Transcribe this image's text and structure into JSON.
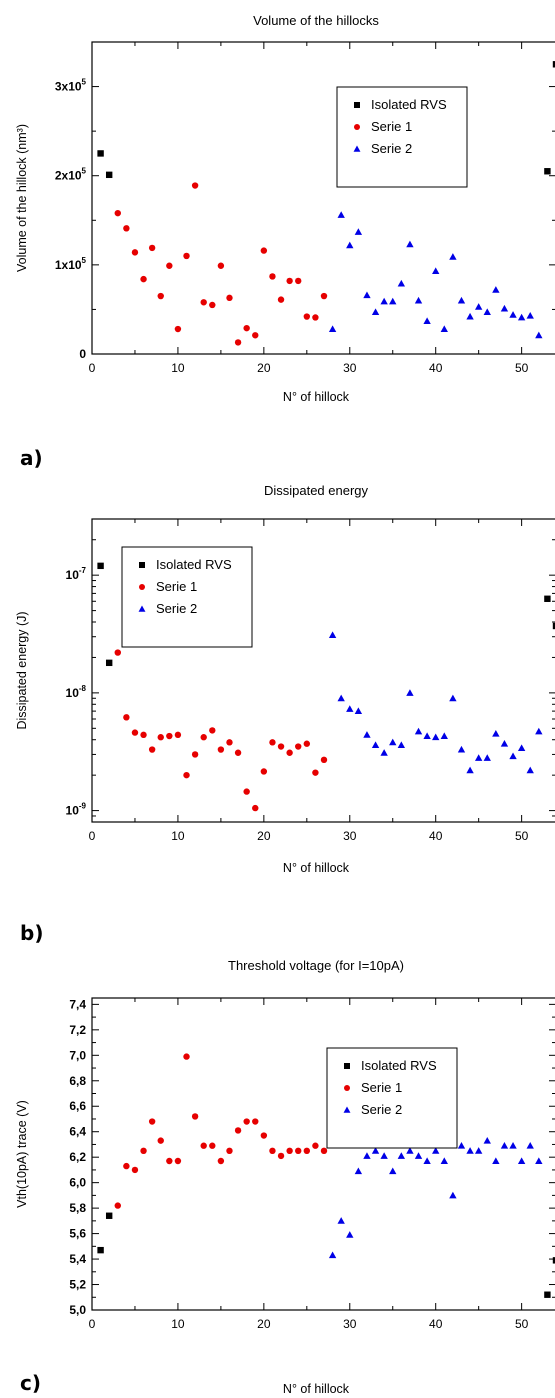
{
  "colors": {
    "isolated": "#000000",
    "serie1": "#e60000",
    "serie2": "#0000e6"
  },
  "chart_data": [
    {
      "panel_label": "a)",
      "type": "scatter",
      "title": "Volume of the hillocks",
      "xlabel": "N° of hillock",
      "ylabel": "Volume of the hillock (nm³)",
      "xlim": [
        0,
        54
      ],
      "ylim": [
        0,
        350000
      ],
      "yscale": "linear",
      "x_ticks": [
        0,
        10,
        20,
        30,
        40,
        50
      ],
      "y_ticks": [
        {
          "value": 0,
          "base": "0",
          "exp": ""
        },
        {
          "value": 100000,
          "base": "1x10",
          "exp": "5"
        },
        {
          "value": 200000,
          "base": "2x10",
          "exp": "5"
        },
        {
          "value": 300000,
          "base": "3x10",
          "exp": "5"
        }
      ],
      "legend_position": "top-right",
      "legend_entries": [
        "Isolated RVS",
        "Serie 1",
        "Serie 2"
      ],
      "series": [
        {
          "name": "Isolated RVS",
          "marker": "square",
          "points": [
            [
              1,
              225000
            ],
            [
              2,
              201000
            ],
            [
              53,
              205000
            ],
            [
              54,
              325000
            ]
          ]
        },
        {
          "name": "Serie 1",
          "marker": "circle",
          "points": [
            [
              3,
              158000
            ],
            [
              4,
              141000
            ],
            [
              5,
              114000
            ],
            [
              6,
              84000
            ],
            [
              7,
              119000
            ],
            [
              8,
              65000
            ],
            [
              9,
              99000
            ],
            [
              10,
              28000
            ],
            [
              11,
              110000
            ],
            [
              12,
              189000
            ],
            [
              13,
              58000
            ],
            [
              14,
              55000
            ],
            [
              15,
              99000
            ],
            [
              16,
              63000
            ],
            [
              17,
              13000
            ],
            [
              18,
              29000
            ],
            [
              19,
              21000
            ],
            [
              20,
              116000
            ],
            [
              21,
              87000
            ],
            [
              22,
              61000
            ],
            [
              23,
              82000
            ],
            [
              24,
              82000
            ],
            [
              25,
              42000
            ],
            [
              26,
              41000
            ],
            [
              27,
              65000
            ]
          ]
        },
        {
          "name": "Serie 2",
          "marker": "triangle",
          "points": [
            [
              28,
              28000
            ],
            [
              29,
              156000
            ],
            [
              30,
              122000
            ],
            [
              31,
              137000
            ],
            [
              32,
              66000
            ],
            [
              33,
              47000
            ],
            [
              34,
              59000
            ],
            [
              35,
              59000
            ],
            [
              36,
              79000
            ],
            [
              37,
              123000
            ],
            [
              38,
              60000
            ],
            [
              39,
              37000
            ],
            [
              40,
              93000
            ],
            [
              41,
              28000
            ],
            [
              42,
              109000
            ],
            [
              43,
              60000
            ],
            [
              44,
              42000
            ],
            [
              45,
              53000
            ],
            [
              46,
              47000
            ],
            [
              47,
              72000
            ],
            [
              48,
              51000
            ],
            [
              49,
              44000
            ],
            [
              50,
              41000
            ],
            [
              51,
              43000
            ],
            [
              52,
              21000
            ]
          ]
        }
      ]
    },
    {
      "panel_label": "b)",
      "type": "scatter",
      "title": "Dissipated energy",
      "xlabel": "N° of hillock",
      "ylabel": "Dissipated  energy (J)",
      "xlim": [
        0,
        54
      ],
      "ylim": [
        8e-10,
        3e-07
      ],
      "yscale": "log",
      "x_ticks": [
        0,
        10,
        20,
        30,
        40,
        50
      ],
      "y_ticks": [
        {
          "value": 1e-09,
          "base": "10",
          "exp": "-9"
        },
        {
          "value": 1e-08,
          "base": "10",
          "exp": "-8"
        },
        {
          "value": 1e-07,
          "base": "10",
          "exp": "-7"
        }
      ],
      "legend_position": "top-left",
      "legend_entries": [
        "Isolated RVS",
        "Serie 1",
        "Serie 2"
      ],
      "series": [
        {
          "name": "Isolated RVS",
          "marker": "square",
          "points": [
            [
              1,
              1.2e-07
            ],
            [
              2,
              1.8e-08
            ],
            [
              53,
              6.3e-08
            ],
            [
              54,
              3.7e-08
            ]
          ]
        },
        {
          "name": "Serie 1",
          "marker": "circle",
          "points": [
            [
              3,
              2.2e-08
            ],
            [
              4,
              6.2e-09
            ],
            [
              5,
              4.6e-09
            ],
            [
              6,
              4.4e-09
            ],
            [
              7,
              3.3e-09
            ],
            [
              8,
              4.2e-09
            ],
            [
              9,
              4.3e-09
            ],
            [
              10,
              4.4e-09
            ],
            [
              11,
              2e-09
            ],
            [
              12,
              3e-09
            ],
            [
              13,
              4.2e-09
            ],
            [
              14,
              4.8e-09
            ],
            [
              15,
              3.3e-09
            ],
            [
              16,
              3.8e-09
            ],
            [
              17,
              3.1e-09
            ],
            [
              18,
              1.45e-09
            ],
            [
              19,
              1.05e-09
            ],
            [
              20,
              2.15e-09
            ],
            [
              21,
              3.8e-09
            ],
            [
              22,
              3.5e-09
            ],
            [
              23,
              3.1e-09
            ],
            [
              24,
              3.5e-09
            ],
            [
              25,
              3.7e-09
            ],
            [
              26,
              2.1e-09
            ],
            [
              27,
              2.7e-09
            ]
          ]
        },
        {
          "name": "Serie 2",
          "marker": "triangle",
          "points": [
            [
              28,
              3.1e-08
            ],
            [
              29,
              9e-09
            ],
            [
              30,
              7.3e-09
            ],
            [
              31,
              7e-09
            ],
            [
              32,
              4.4e-09
            ],
            [
              33,
              3.6e-09
            ],
            [
              34,
              3.1e-09
            ],
            [
              35,
              3.8e-09
            ],
            [
              36,
              3.6e-09
            ],
            [
              37,
              1e-08
            ],
            [
              38,
              4.7e-09
            ],
            [
              39,
              4.3e-09
            ],
            [
              40,
              4.2e-09
            ],
            [
              41,
              4.3e-09
            ],
            [
              42,
              9e-09
            ],
            [
              43,
              3.3e-09
            ],
            [
              44,
              2.2e-09
            ],
            [
              45,
              2.8e-09
            ],
            [
              46,
              2.8e-09
            ],
            [
              47,
              4.5e-09
            ],
            [
              48,
              3.7e-09
            ],
            [
              49,
              2.9e-09
            ],
            [
              50,
              3.4e-09
            ],
            [
              51,
              2.2e-09
            ],
            [
              52,
              4.7e-09
            ]
          ]
        }
      ]
    },
    {
      "panel_label": "c)",
      "type": "scatter",
      "title": "Threshold voltage (for I=10pA)",
      "xlabel": "N° of hillock",
      "ylabel": "Vth(10pA) trace (V)",
      "xlim": [
        0,
        54
      ],
      "ylim": [
        5.0,
        7.45
      ],
      "yscale": "linear",
      "x_ticks": [
        0,
        10,
        20,
        30,
        40,
        50
      ],
      "y_ticks": [
        {
          "value": 5.0,
          "base": "5,0",
          "exp": ""
        },
        {
          "value": 5.2,
          "base": "5,2",
          "exp": ""
        },
        {
          "value": 5.4,
          "base": "5,4",
          "exp": ""
        },
        {
          "value": 5.6,
          "base": "5,6",
          "exp": ""
        },
        {
          "value": 5.8,
          "base": "5,8",
          "exp": ""
        },
        {
          "value": 6.0,
          "base": "6,0",
          "exp": ""
        },
        {
          "value": 6.2,
          "base": "6,2",
          "exp": ""
        },
        {
          "value": 6.4,
          "base": "6,4",
          "exp": ""
        },
        {
          "value": 6.6,
          "base": "6,6",
          "exp": ""
        },
        {
          "value": 6.8,
          "base": "6,8",
          "exp": ""
        },
        {
          "value": 7.0,
          "base": "7,0",
          "exp": ""
        },
        {
          "value": 7.2,
          "base": "7,2",
          "exp": ""
        },
        {
          "value": 7.4,
          "base": "7,4",
          "exp": ""
        }
      ],
      "legend_position": "top-right",
      "legend_entries": [
        "Isolated RVS",
        "Serie 1",
        "Serie 2"
      ],
      "series": [
        {
          "name": "Isolated RVS",
          "marker": "square",
          "points": [
            [
              1,
              5.47
            ],
            [
              2,
              5.74
            ],
            [
              53,
              5.12
            ],
            [
              54,
              5.39
            ]
          ]
        },
        {
          "name": "Serie 1",
          "marker": "circle",
          "points": [
            [
              3,
              5.82
            ],
            [
              4,
              6.13
            ],
            [
              5,
              6.1
            ],
            [
              6,
              6.25
            ],
            [
              7,
              6.48
            ],
            [
              8,
              6.33
            ],
            [
              9,
              6.17
            ],
            [
              10,
              6.17
            ],
            [
              11,
              6.99
            ],
            [
              12,
              6.52
            ],
            [
              13,
              6.29
            ],
            [
              14,
              6.29
            ],
            [
              15,
              6.17
            ],
            [
              16,
              6.25
            ],
            [
              17,
              6.41
            ],
            [
              18,
              6.48
            ],
            [
              19,
              6.48
            ],
            [
              20,
              6.37
            ],
            [
              21,
              6.25
            ],
            [
              22,
              6.21
            ],
            [
              23,
              6.25
            ],
            [
              24,
              6.25
            ],
            [
              25,
              6.25
            ],
            [
              26,
              6.29
            ],
            [
              27,
              6.25
            ]
          ]
        },
        {
          "name": "Serie 2",
          "marker": "triangle",
          "points": [
            [
              28,
              5.43
            ],
            [
              29,
              5.7
            ],
            [
              30,
              5.59
            ],
            [
              31,
              6.09
            ],
            [
              32,
              6.21
            ],
            [
              33,
              6.25
            ],
            [
              34,
              6.21
            ],
            [
              35,
              6.09
            ],
            [
              36,
              6.21
            ],
            [
              37,
              6.25
            ],
            [
              38,
              6.21
            ],
            [
              39,
              6.17
            ],
            [
              40,
              6.25
            ],
            [
              41,
              6.17
            ],
            [
              42,
              5.9
            ],
            [
              43,
              6.29
            ],
            [
              44,
              6.25
            ],
            [
              45,
              6.25
            ],
            [
              46,
              6.33
            ],
            [
              47,
              6.17
            ],
            [
              48,
              6.29
            ],
            [
              49,
              6.29
            ],
            [
              50,
              6.17
            ],
            [
              51,
              6.29
            ],
            [
              52,
              6.17
            ]
          ]
        }
      ]
    }
  ]
}
